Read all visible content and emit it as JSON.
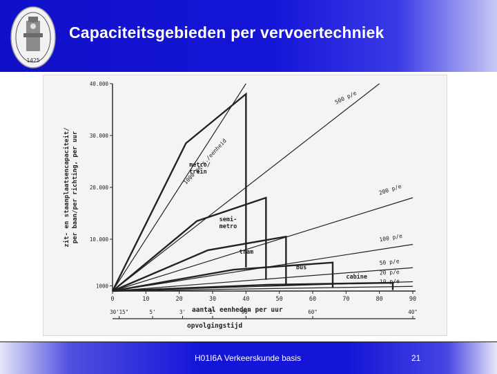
{
  "slide": {
    "title": "Capaciteitsgebieden per vervoertechniek",
    "footer": "H01I6A Verkeerskunde basis",
    "page_number": "21",
    "logo_year": "1425"
  },
  "colors": {
    "header_blue": "#1515d8",
    "line_color": "#222222"
  },
  "chart_data": {
    "type": "line",
    "ylabel_lines": [
      "zit- en staanplaatsencapaciteit/",
      "per baan/per richting, per uur"
    ],
    "xlabel": "aantal eenheden per uur",
    "xlabel2": "opvolgingstijd",
    "xlim": [
      0,
      90
    ],
    "ylim": [
      0,
      40000
    ],
    "x_ticks": [
      "0",
      "10",
      "20",
      "30",
      "40",
      "50",
      "60",
      "70",
      "80",
      "90"
    ],
    "y_ticks": [
      {
        "value": 1000,
        "label": "1000"
      },
      {
        "value": 10000,
        "label": "10.000"
      },
      {
        "value": 20000,
        "label": "20.000"
      },
      {
        "value": 30000,
        "label": "30.000"
      },
      {
        "value": 40000,
        "label": "40.000"
      }
    ],
    "headway_ticks": [
      {
        "x": 2,
        "label": "30'15\""
      },
      {
        "x": 12,
        "label": "5'"
      },
      {
        "x": 21,
        "label": "3'"
      },
      {
        "x": 30,
        "label": "2'"
      },
      {
        "x": 40,
        "label": "90\""
      },
      {
        "x": 60,
        "label": "60\""
      },
      {
        "x": 90,
        "label": "40\""
      }
    ],
    "capacity_lines": [
      {
        "name": "1000 pers./eenheid",
        "x_end": 40,
        "y_end": 40000
      },
      {
        "name": "500 p/e",
        "x_end": 80,
        "y_end": 40000
      },
      {
        "name": "200 p/e",
        "x_end": 90,
        "y_end": 18000
      },
      {
        "name": "100 p/e",
        "x_end": 90,
        "y_end": 9000
      },
      {
        "name": "50 p/e",
        "x_end": 90,
        "y_end": 4500
      },
      {
        "name": "20 p/e",
        "x_end": 90,
        "y_end": 1800
      },
      {
        "name": "10 p/e",
        "x_end": 90,
        "y_end": 900
      }
    ],
    "modes": [
      {
        "name": "metro/ trein",
        "label_lines": [
          "metro/",
          "trein"
        ],
        "x_max": 40,
        "y_max": 38000
      },
      {
        "name": "semi-metro",
        "label_lines": [
          "semi-",
          "metro"
        ],
        "x_max": 46,
        "y_max": 18000
      },
      {
        "name": "tram",
        "label_lines": [
          "tram"
        ],
        "x_max": 52,
        "y_max": 10500
      },
      {
        "name": "bus",
        "label_lines": [
          "bus"
        ],
        "x_max": 66,
        "y_max": 5500
      },
      {
        "name": "cabine",
        "label_lines": [
          "cabine"
        ],
        "x_max": 84,
        "y_max": 1600
      }
    ]
  }
}
